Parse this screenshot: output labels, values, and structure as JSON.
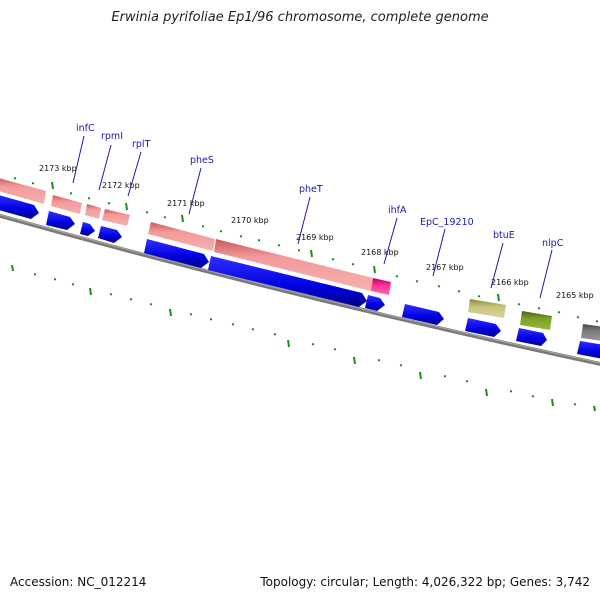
{
  "header": {
    "title": "Erwinia pyrifoliae Ep1/96 chromosome, complete genome"
  },
  "footer": {
    "accession": "Accession: NC_012214",
    "summary": "Topology: circular; Length: 4,026,322 bp; Genes: 3,742"
  },
  "colors": {
    "tick": "#1e8c1e",
    "backbone": "#7a7a7a",
    "cds_blue": "#0a0ae6",
    "gene_salmon": "#f08c8c",
    "gene_magenta": "#e6147a",
    "gene_khaki": "#b9b46e",
    "gene_olive": "#6e8c1e",
    "gene_gray": "#6e6e6e",
    "label": "#1a1aa8"
  },
  "map": {
    "kbp_labels": [
      "2173 kbp",
      "2172 kbp",
      "2171 kbp",
      "2170 kbp",
      "2169 kbp",
      "2168 kbp",
      "2167 kbp",
      "2166 kbp",
      "2165 kbp"
    ],
    "genes": [
      "infC",
      "rpmI",
      "rplT",
      "pheS",
      "pheT",
      "ihfA",
      "EpC_19210",
      "btuE",
      "nlpC"
    ]
  }
}
